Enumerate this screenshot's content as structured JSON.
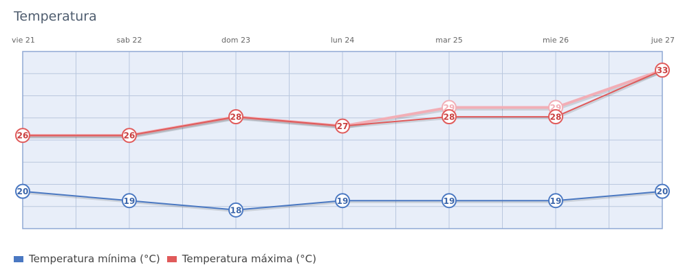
{
  "chart_data": {
    "type": "line",
    "title": "Temperatura",
    "categories": [
      "vie 21",
      "sab 22",
      "dom 23",
      "lun 24",
      "mar 25",
      "mie 26",
      "jue 27"
    ],
    "ylim": [
      16,
      35
    ],
    "grid": true,
    "legend_position": "bottom-left",
    "series": [
      {
        "name": "Temperatura mínima (°C)",
        "color": "#4a78c2",
        "values": [
          20,
          19,
          18,
          19,
          19,
          19,
          20
        ]
      },
      {
        "name": "Temperatura máxima (°C)",
        "color": "#e05a5a",
        "values": [
          26,
          26,
          28,
          27,
          28,
          28,
          33
        ]
      },
      {
        "name": "",
        "color": "#f2aeb6",
        "values": [
          26,
          26,
          28,
          27,
          29,
          29,
          33
        ]
      }
    ],
    "legend": [
      {
        "label": "Temperatura mínima (°C)",
        "color": "#4a78c2"
      },
      {
        "label": "Temperatura máxima (°C)",
        "color": "#e05a5a"
      }
    ]
  }
}
